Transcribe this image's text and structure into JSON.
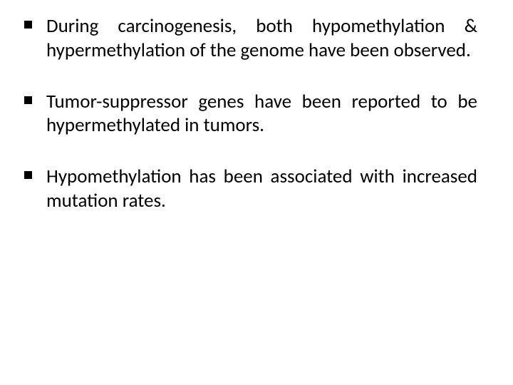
{
  "slide": {
    "background_color": "#ffffff",
    "text_color": "#000000",
    "font_family": "Calibri",
    "font_size_pt": 20,
    "text_align": "justify",
    "bullet_style": "square",
    "bullet_color": "#000000",
    "bullets": [
      {
        "text": "During carcinogenesis, both hypomethylation & hypermethylation of the genome have been observed."
      },
      {
        "text": "Tumor-suppressor genes have been reported to be hypermethylated in tumors."
      },
      {
        "text": "Hypomethylation has been associated with increased mutation rates."
      }
    ]
  }
}
